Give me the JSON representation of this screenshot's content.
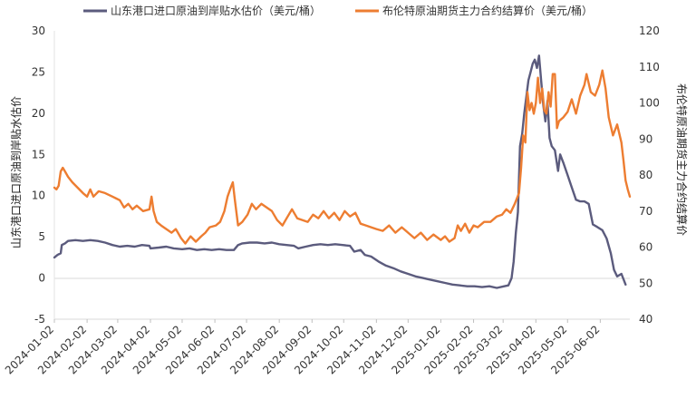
{
  "chart_data": {
    "type": "line",
    "title": "",
    "legend_position": "top",
    "grid": false,
    "x": {
      "type": "date",
      "range": [
        "2024-01-02",
        "2025-06-30"
      ],
      "tick_labels": [
        "2024-01-02",
        "2024-02-02",
        "2024-03-02",
        "2024-04-02",
        "2024-05-02",
        "2024-06-02",
        "2024-07-02",
        "2024-08-02",
        "2024-09-02",
        "2024-10-02",
        "2024-11-02",
        "2024-12-02",
        "2025-01-02",
        "2025-02-02",
        "2025-03-02",
        "2025-04-02",
        "2025-05-02",
        "2025-06-02"
      ]
    },
    "y_left": {
      "label": "山东港口进口原油到岸贴水估价",
      "range": [
        -5,
        30
      ],
      "ticks": [
        "-5",
        "0",
        "5",
        "10",
        "15",
        "20",
        "25",
        "30"
      ]
    },
    "y_right": {
      "label": "布伦特原油期货主力合约结算价",
      "range": [
        40,
        120
      ],
      "ticks": [
        "40",
        "50",
        "60",
        "70",
        "80",
        "90",
        "100",
        "110",
        "120"
      ]
    },
    "series": [
      {
        "name": "山东港口进口原油到岸贴水估价（美元/桶）",
        "axis": "left",
        "color": "#5b5b7d",
        "points": [
          [
            "2024-01-02",
            2.5
          ],
          [
            "2024-01-05",
            2.8
          ],
          [
            "2024-01-08",
            3.0
          ],
          [
            "2024-01-09",
            4.0
          ],
          [
            "2024-01-12",
            4.2
          ],
          [
            "2024-01-15",
            4.5
          ],
          [
            "2024-01-22",
            4.6
          ],
          [
            "2024-01-29",
            4.5
          ],
          [
            "2024-02-05",
            4.6
          ],
          [
            "2024-02-12",
            4.5
          ],
          [
            "2024-02-19",
            4.3
          ],
          [
            "2024-02-26",
            4.0
          ],
          [
            "2024-03-04",
            3.8
          ],
          [
            "2024-03-11",
            3.9
          ],
          [
            "2024-03-18",
            3.8
          ],
          [
            "2024-03-25",
            4.0
          ],
          [
            "2024-04-01",
            3.9
          ],
          [
            "2024-04-02",
            3.6
          ],
          [
            "2024-04-10",
            3.7
          ],
          [
            "2024-04-17",
            3.8
          ],
          [
            "2024-04-24",
            3.6
          ],
          [
            "2024-05-02",
            3.5
          ],
          [
            "2024-05-09",
            3.6
          ],
          [
            "2024-05-16",
            3.4
          ],
          [
            "2024-05-23",
            3.5
          ],
          [
            "2024-05-30",
            3.4
          ],
          [
            "2024-06-06",
            3.5
          ],
          [
            "2024-06-13",
            3.4
          ],
          [
            "2024-06-20",
            3.4
          ],
          [
            "2024-06-24",
            4.0
          ],
          [
            "2024-06-28",
            4.2
          ],
          [
            "2024-07-05",
            4.3
          ],
          [
            "2024-07-12",
            4.3
          ],
          [
            "2024-07-19",
            4.2
          ],
          [
            "2024-07-26",
            4.3
          ],
          [
            "2024-08-02",
            4.1
          ],
          [
            "2024-08-09",
            4.0
          ],
          [
            "2024-08-16",
            3.9
          ],
          [
            "2024-08-20",
            3.6
          ],
          [
            "2024-08-27",
            3.8
          ],
          [
            "2024-09-03",
            4.0
          ],
          [
            "2024-09-10",
            4.1
          ],
          [
            "2024-09-17",
            4.0
          ],
          [
            "2024-09-24",
            4.1
          ],
          [
            "2024-10-01",
            4.0
          ],
          [
            "2024-10-08",
            3.9
          ],
          [
            "2024-10-12",
            3.2
          ],
          [
            "2024-10-18",
            3.4
          ],
          [
            "2024-10-22",
            2.8
          ],
          [
            "2024-10-28",
            2.6
          ],
          [
            "2024-11-04",
            2.0
          ],
          [
            "2024-11-11",
            1.5
          ],
          [
            "2024-11-18",
            1.2
          ],
          [
            "2024-11-25",
            0.8
          ],
          [
            "2024-12-02",
            0.5
          ],
          [
            "2024-12-09",
            0.2
          ],
          [
            "2024-12-16",
            0.0
          ],
          [
            "2024-12-23",
            -0.2
          ],
          [
            "2024-12-30",
            -0.4
          ],
          [
            "2025-01-06",
            -0.6
          ],
          [
            "2025-01-13",
            -0.8
          ],
          [
            "2025-01-20",
            -0.9
          ],
          [
            "2025-01-27",
            -1.0
          ],
          [
            "2025-02-03",
            -1.0
          ],
          [
            "2025-02-10",
            -1.1
          ],
          [
            "2025-02-17",
            -1.0
          ],
          [
            "2025-02-24",
            -1.2
          ],
          [
            "2025-03-03",
            -1.0
          ],
          [
            "2025-03-07",
            -0.9
          ],
          [
            "2025-03-10",
            0.0
          ],
          [
            "2025-03-12",
            2.0
          ],
          [
            "2025-03-14",
            5.5
          ],
          [
            "2025-03-16",
            8.0
          ],
          [
            "2025-03-18",
            16.0
          ],
          [
            "2025-03-20",
            17.5
          ],
          [
            "2025-03-22",
            20.0
          ],
          [
            "2025-03-24",
            22.0
          ],
          [
            "2025-03-26",
            24.0
          ],
          [
            "2025-03-28",
            25.0
          ],
          [
            "2025-03-30",
            26.0
          ],
          [
            "2025-04-01",
            26.5
          ],
          [
            "2025-04-03",
            25.5
          ],
          [
            "2025-04-05",
            27.0
          ],
          [
            "2025-04-07",
            24.0
          ],
          [
            "2025-04-09",
            21.0
          ],
          [
            "2025-04-11",
            19.0
          ],
          [
            "2025-04-13",
            21.5
          ],
          [
            "2025-04-15",
            17.0
          ],
          [
            "2025-04-17",
            16.0
          ],
          [
            "2025-04-20",
            15.5
          ],
          [
            "2025-04-23",
            13.0
          ],
          [
            "2025-04-25",
            15.0
          ],
          [
            "2025-04-28",
            14.0
          ],
          [
            "2025-05-02",
            12.5
          ],
          [
            "2025-05-06",
            11.0
          ],
          [
            "2025-05-10",
            9.5
          ],
          [
            "2025-05-14",
            9.3
          ],
          [
            "2025-05-18",
            9.3
          ],
          [
            "2025-05-22",
            9.0
          ],
          [
            "2025-05-26",
            6.5
          ],
          [
            "2025-05-30",
            6.2
          ],
          [
            "2025-06-04",
            5.8
          ],
          [
            "2025-06-08",
            4.8
          ],
          [
            "2025-06-12",
            3.0
          ],
          [
            "2025-06-15",
            1.0
          ],
          [
            "2025-06-18",
            0.2
          ],
          [
            "2025-06-22",
            0.5
          ],
          [
            "2025-06-26",
            -0.8
          ]
        ]
      },
      {
        "name": "布伦特原油期货主力合约结算价（美元/桶）",
        "axis": "right",
        "color": "#ed7d31",
        "points": [
          [
            "2024-01-02",
            76.5
          ],
          [
            "2024-01-04",
            76.0
          ],
          [
            "2024-01-06",
            77.0
          ],
          [
            "2024-01-08",
            81.0
          ],
          [
            "2024-01-10",
            82.0
          ],
          [
            "2024-01-12",
            81.0
          ],
          [
            "2024-01-15",
            79.5
          ],
          [
            "2024-01-19",
            78.0
          ],
          [
            "2024-01-24",
            76.5
          ],
          [
            "2024-01-29",
            75.0
          ],
          [
            "2024-02-02",
            74.0
          ],
          [
            "2024-02-05",
            76.0
          ],
          [
            "2024-02-08",
            74.0
          ],
          [
            "2024-02-13",
            75.5
          ],
          [
            "2024-02-19",
            75.0
          ],
          [
            "2024-02-26",
            74.0
          ],
          [
            "2024-03-04",
            73.0
          ],
          [
            "2024-03-08",
            71.0
          ],
          [
            "2024-03-12",
            72.0
          ],
          [
            "2024-03-16",
            70.5
          ],
          [
            "2024-03-20",
            71.5
          ],
          [
            "2024-03-26",
            70.0
          ],
          [
            "2024-04-01",
            70.5
          ],
          [
            "2024-04-03",
            74.0
          ],
          [
            "2024-04-05",
            70.0
          ],
          [
            "2024-04-08",
            67.0
          ],
          [
            "2024-04-12",
            66.0
          ],
          [
            "2024-04-17",
            65.0
          ],
          [
            "2024-04-22",
            64.0
          ],
          [
            "2024-04-26",
            65.0
          ],
          [
            "2024-05-01",
            62.5
          ],
          [
            "2024-05-05",
            61.0
          ],
          [
            "2024-05-10",
            63.0
          ],
          [
            "2024-05-15",
            61.5
          ],
          [
            "2024-05-20",
            63.0
          ],
          [
            "2024-05-24",
            64.0
          ],
          [
            "2024-05-28",
            65.5
          ],
          [
            "2024-06-03",
            66.0
          ],
          [
            "2024-06-07",
            67.0
          ],
          [
            "2024-06-11",
            70.0
          ],
          [
            "2024-06-14",
            74.0
          ],
          [
            "2024-06-17",
            76.5
          ],
          [
            "2024-06-19",
            78.0
          ],
          [
            "2024-06-21",
            73.0
          ],
          [
            "2024-06-24",
            66.0
          ],
          [
            "2024-06-28",
            67.0
          ],
          [
            "2024-07-03",
            69.0
          ],
          [
            "2024-07-07",
            72.0
          ],
          [
            "2024-07-11",
            70.5
          ],
          [
            "2024-07-16",
            72.0
          ],
          [
            "2024-07-21",
            71.0
          ],
          [
            "2024-07-26",
            70.0
          ],
          [
            "2024-07-31",
            67.5
          ],
          [
            "2024-08-05",
            66.0
          ],
          [
            "2024-08-09",
            68.0
          ],
          [
            "2024-08-14",
            70.5
          ],
          [
            "2024-08-19",
            68.0
          ],
          [
            "2024-08-24",
            67.5
          ],
          [
            "2024-08-29",
            67.0
          ],
          [
            "2024-09-03",
            69.0
          ],
          [
            "2024-09-08",
            68.0
          ],
          [
            "2024-09-13",
            70.0
          ],
          [
            "2024-09-18",
            68.0
          ],
          [
            "2024-09-23",
            69.5
          ],
          [
            "2024-09-28",
            67.5
          ],
          [
            "2024-10-03",
            70.0
          ],
          [
            "2024-10-08",
            68.5
          ],
          [
            "2024-10-13",
            69.5
          ],
          [
            "2024-10-18",
            66.5
          ],
          [
            "2024-10-23",
            66.0
          ],
          [
            "2024-10-28",
            65.5
          ],
          [
            "2024-11-02",
            65.0
          ],
          [
            "2024-11-08",
            64.5
          ],
          [
            "2024-11-14",
            66.0
          ],
          [
            "2024-11-20",
            64.0
          ],
          [
            "2024-11-26",
            65.5
          ],
          [
            "2024-12-02",
            64.0
          ],
          [
            "2024-12-08",
            62.5
          ],
          [
            "2024-12-14",
            64.0
          ],
          [
            "2024-12-20",
            62.0
          ],
          [
            "2024-12-26",
            63.5
          ],
          [
            "2025-01-02",
            62.0
          ],
          [
            "2025-01-06",
            63.0
          ],
          [
            "2025-01-10",
            61.5
          ],
          [
            "2025-01-15",
            62.5
          ],
          [
            "2025-01-18",
            66.0
          ],
          [
            "2025-01-21",
            64.5
          ],
          [
            "2025-01-25",
            66.5
          ],
          [
            "2025-01-29",
            64.0
          ],
          [
            "2025-02-02",
            66.0
          ],
          [
            "2025-02-06",
            65.5
          ],
          [
            "2025-02-12",
            67.0
          ],
          [
            "2025-02-18",
            67.0
          ],
          [
            "2025-02-24",
            68.5
          ],
          [
            "2025-03-01",
            69.0
          ],
          [
            "2025-03-05",
            70.5
          ],
          [
            "2025-03-09",
            69.5
          ],
          [
            "2025-03-13",
            72.0
          ],
          [
            "2025-03-17",
            75.0
          ],
          [
            "2025-03-19",
            82.0
          ],
          [
            "2025-03-21",
            91.0
          ],
          [
            "2025-03-23",
            89.0
          ],
          [
            "2025-03-25",
            103.0
          ],
          [
            "2025-03-27",
            98.0
          ],
          [
            "2025-03-29",
            100.0
          ],
          [
            "2025-03-31",
            97.0
          ],
          [
            "2025-04-02",
            100.0
          ],
          [
            "2025-04-04",
            107.0
          ],
          [
            "2025-04-06",
            100.0
          ],
          [
            "2025-04-08",
            104.0
          ],
          [
            "2025-04-10",
            98.0
          ],
          [
            "2025-04-12",
            97.0
          ],
          [
            "2025-04-14",
            103.0
          ],
          [
            "2025-04-16",
            99.0
          ],
          [
            "2025-04-18",
            108.0
          ],
          [
            "2025-04-20",
            108.0
          ],
          [
            "2025-04-22",
            93.0
          ],
          [
            "2025-04-24",
            95.0
          ],
          [
            "2025-04-28",
            96.0
          ],
          [
            "2025-05-02",
            97.5
          ],
          [
            "2025-05-06",
            101.0
          ],
          [
            "2025-05-10",
            97.0
          ],
          [
            "2025-05-14",
            102.0
          ],
          [
            "2025-05-18",
            105.0
          ],
          [
            "2025-05-20",
            108.0
          ],
          [
            "2025-05-24",
            103.0
          ],
          [
            "2025-05-28",
            102.0
          ],
          [
            "2025-06-01",
            105.0
          ],
          [
            "2025-06-04",
            109.0
          ],
          [
            "2025-06-07",
            104.0
          ],
          [
            "2025-06-10",
            96.0
          ],
          [
            "2025-06-14",
            91.0
          ],
          [
            "2025-06-18",
            94.0
          ],
          [
            "2025-06-22",
            89.0
          ],
          [
            "2025-06-24",
            84.0
          ],
          [
            "2025-06-26",
            78.5
          ],
          [
            "2025-06-28",
            76.0
          ],
          [
            "2025-06-30",
            74.0
          ]
        ]
      }
    ]
  }
}
